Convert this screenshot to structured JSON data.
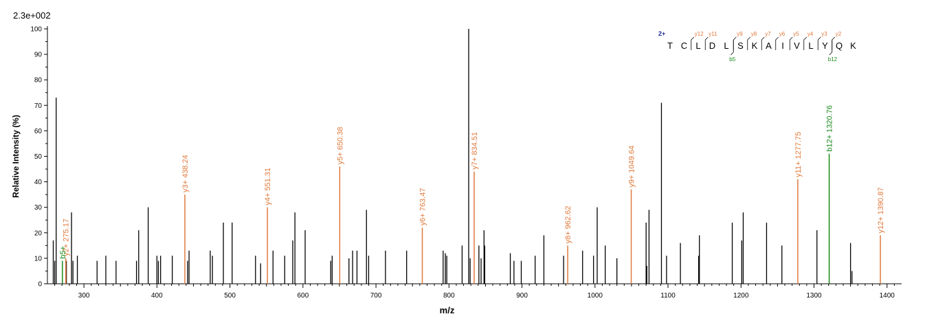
{
  "scale_label": "2.3e+002",
  "colors": {
    "y_ion": "#e07a3c",
    "b_ion": "#1a8a1a",
    "other": "#000000",
    "charge": "#1a2a9a"
  },
  "chart_data": {
    "type": "bar",
    "xlabel": "m/z",
    "ylabel": "Relative  Intensity (%)",
    "xlim": [
      250,
      1420
    ],
    "ylim": [
      0,
      100
    ],
    "xticks": [
      300,
      400,
      500,
      600,
      700,
      800,
      900,
      1000,
      1100,
      1200,
      1300,
      1400
    ],
    "yticks": [
      0,
      10,
      20,
      30,
      40,
      50,
      60,
      70,
      80,
      90,
      100
    ],
    "annotated_peaks": [
      {
        "mz": 275.17,
        "intensity": 10,
        "label": "y2+ 275.17",
        "kind": "y"
      },
      {
        "mz": 270.5,
        "intensity": 9,
        "label": "b5+",
        "kind": "b"
      },
      {
        "mz": 438.24,
        "intensity": 35,
        "label": "y3+ 438.24",
        "kind": "y"
      },
      {
        "mz": 551.31,
        "intensity": 30,
        "label": "y4+ 551.31",
        "kind": "y"
      },
      {
        "mz": 650.38,
        "intensity": 46,
        "label": "y5+ 650.38",
        "kind": "y"
      },
      {
        "mz": 763.47,
        "intensity": 22,
        "label": "y6+ 763.47",
        "kind": "y"
      },
      {
        "mz": 834.51,
        "intensity": 44,
        "label": "y7+ 834.51",
        "kind": "y"
      },
      {
        "mz": 962.62,
        "intensity": 15,
        "label": "y8+ 962.62",
        "kind": "y"
      },
      {
        "mz": 1049.64,
        "intensity": 37,
        "label": "y9+ 1049.64",
        "kind": "y"
      },
      {
        "mz": 1277.75,
        "intensity": 41,
        "label": "y11+ 1277.75",
        "kind": "y"
      },
      {
        "mz": 1320.76,
        "intensity": 51,
        "label": "b12+ 1320.76",
        "kind": "b"
      },
      {
        "mz": 1390.87,
        "intensity": 19,
        "label": "y12+ 1390.87",
        "kind": "y"
      }
    ],
    "peaks": [
      [
        258,
        17
      ],
      [
        260,
        9
      ],
      [
        262,
        73
      ],
      [
        276,
        9
      ],
      [
        283,
        28
      ],
      [
        285,
        9
      ],
      [
        291,
        11
      ],
      [
        318,
        9
      ],
      [
        330,
        11
      ],
      [
        344,
        9
      ],
      [
        372,
        9
      ],
      [
        375,
        21
      ],
      [
        388,
        30
      ],
      [
        400,
        11
      ],
      [
        402,
        9
      ],
      [
        405,
        11
      ],
      [
        421,
        11
      ],
      [
        442,
        9
      ],
      [
        444,
        13
      ],
      [
        473,
        13
      ],
      [
        476,
        11
      ],
      [
        491,
        24
      ],
      [
        503,
        24
      ],
      [
        535,
        11
      ],
      [
        542,
        8
      ],
      [
        559,
        13
      ],
      [
        575,
        11
      ],
      [
        586,
        17
      ],
      [
        589,
        28
      ],
      [
        603,
        21
      ],
      [
        638,
        9
      ],
      [
        640,
        11
      ],
      [
        663,
        10
      ],
      [
        668,
        13
      ],
      [
        674,
        13
      ],
      [
        687,
        29
      ],
      [
        690,
        11
      ],
      [
        713,
        13
      ],
      [
        742,
        13
      ],
      [
        792,
        13
      ],
      [
        795,
        12
      ],
      [
        797,
        11
      ],
      [
        818,
        15
      ],
      [
        827,
        100
      ],
      [
        829,
        10
      ],
      [
        841,
        15
      ],
      [
        844,
        10
      ],
      [
        848,
        21
      ],
      [
        849,
        15
      ],
      [
        884,
        12
      ],
      [
        889,
        9
      ],
      [
        899,
        9
      ],
      [
        918,
        11
      ],
      [
        930,
        19
      ],
      [
        957,
        11
      ],
      [
        983,
        13
      ],
      [
        998,
        11
      ],
      [
        1003,
        30
      ],
      [
        1014,
        15
      ],
      [
        1030,
        10
      ],
      [
        1070,
        24
      ],
      [
        1071,
        7
      ],
      [
        1074,
        29
      ],
      [
        1091,
        71
      ],
      [
        1098,
        11
      ],
      [
        1117,
        16
      ],
      [
        1142,
        11
      ],
      [
        1143,
        19
      ],
      [
        1188,
        24
      ],
      [
        1201,
        17
      ],
      [
        1203,
        28
      ],
      [
        1235,
        24
      ],
      [
        1256,
        15
      ],
      [
        1304,
        21
      ],
      [
        1350,
        16
      ],
      [
        1352,
        5
      ]
    ],
    "sequence": {
      "charge": "2+",
      "letters": [
        "T",
        "C",
        "L",
        "D",
        "L",
        "S",
        "K",
        "A",
        "I",
        "V",
        "L",
        "Y",
        "Q",
        "K"
      ],
      "y_labels": [
        "y12",
        "y11",
        "y9",
        "y8",
        "y7",
        "y6",
        "y5",
        "y4",
        "y3",
        "y2"
      ],
      "b_labels": [
        "b5",
        "b12"
      ]
    }
  }
}
